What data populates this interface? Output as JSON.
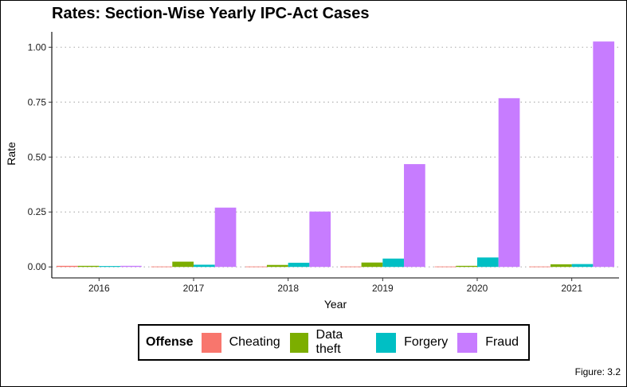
{
  "chart_data": {
    "type": "bar",
    "title": "Rates: Section-Wise Yearly IPC-Act Cases",
    "xlabel": "Year",
    "ylabel": "Rate",
    "categories": [
      "2016",
      "2017",
      "2018",
      "2019",
      "2020",
      "2021"
    ],
    "ylim": [
      -0.05,
      1.07
    ],
    "yticks": [
      0.0,
      0.25,
      0.5,
      0.75,
      1.0
    ],
    "ytick_labels": [
      "0.00",
      "0.25",
      "0.50",
      "0.75",
      "1.00"
    ],
    "grid": "horizontal dotted",
    "legend_title": "Offense",
    "legend_position": "bottom",
    "series": [
      {
        "name": "Cheating",
        "color": "#F8766D",
        "values": [
          0.005,
          0.002,
          0.002,
          0.002,
          0.002,
          0.002
        ]
      },
      {
        "name": "Data theft",
        "color": "#7CAE00",
        "values": [
          0.005,
          0.024,
          0.009,
          0.02,
          0.005,
          0.012
        ]
      },
      {
        "name": "Forgery",
        "color": "#00BFC4",
        "values": [
          0.004,
          0.01,
          0.019,
          0.038,
          0.043,
          0.013
        ]
      },
      {
        "name": "Fraud",
        "color": "#C77CFF",
        "values": [
          0.005,
          0.27,
          0.252,
          0.468,
          0.768,
          1.026
        ]
      }
    ]
  },
  "caption": "Figure: 3.2"
}
